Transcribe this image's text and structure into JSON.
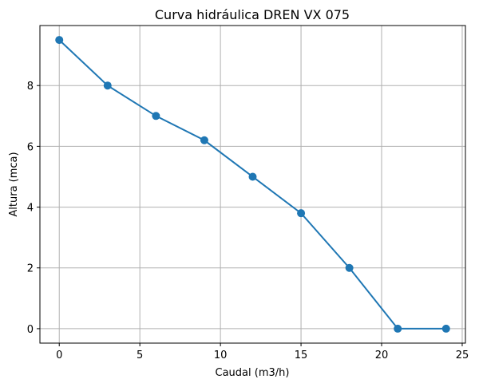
{
  "chart_data": {
    "type": "line",
    "title": "Curva hidráulica DREN VX 075",
    "xlabel": "Caudal (m3/h)",
    "ylabel": "Altura (mca)",
    "x": [
      0,
      3,
      6,
      9,
      12,
      15,
      18,
      21,
      24
    ],
    "series": [
      {
        "values": [
          9.5,
          8.0,
          7.0,
          6.2,
          5.0,
          3.8,
          2.0,
          0.0,
          0.0
        ]
      }
    ],
    "xlim": [
      -1.2,
      25.2
    ],
    "ylim": [
      -0.475,
      9.975
    ],
    "xticks": [
      0,
      5,
      10,
      15,
      20,
      25
    ],
    "yticks": [
      0,
      2,
      4,
      6,
      8
    ],
    "grid": true,
    "markers": true,
    "color": "#1f77b4"
  }
}
